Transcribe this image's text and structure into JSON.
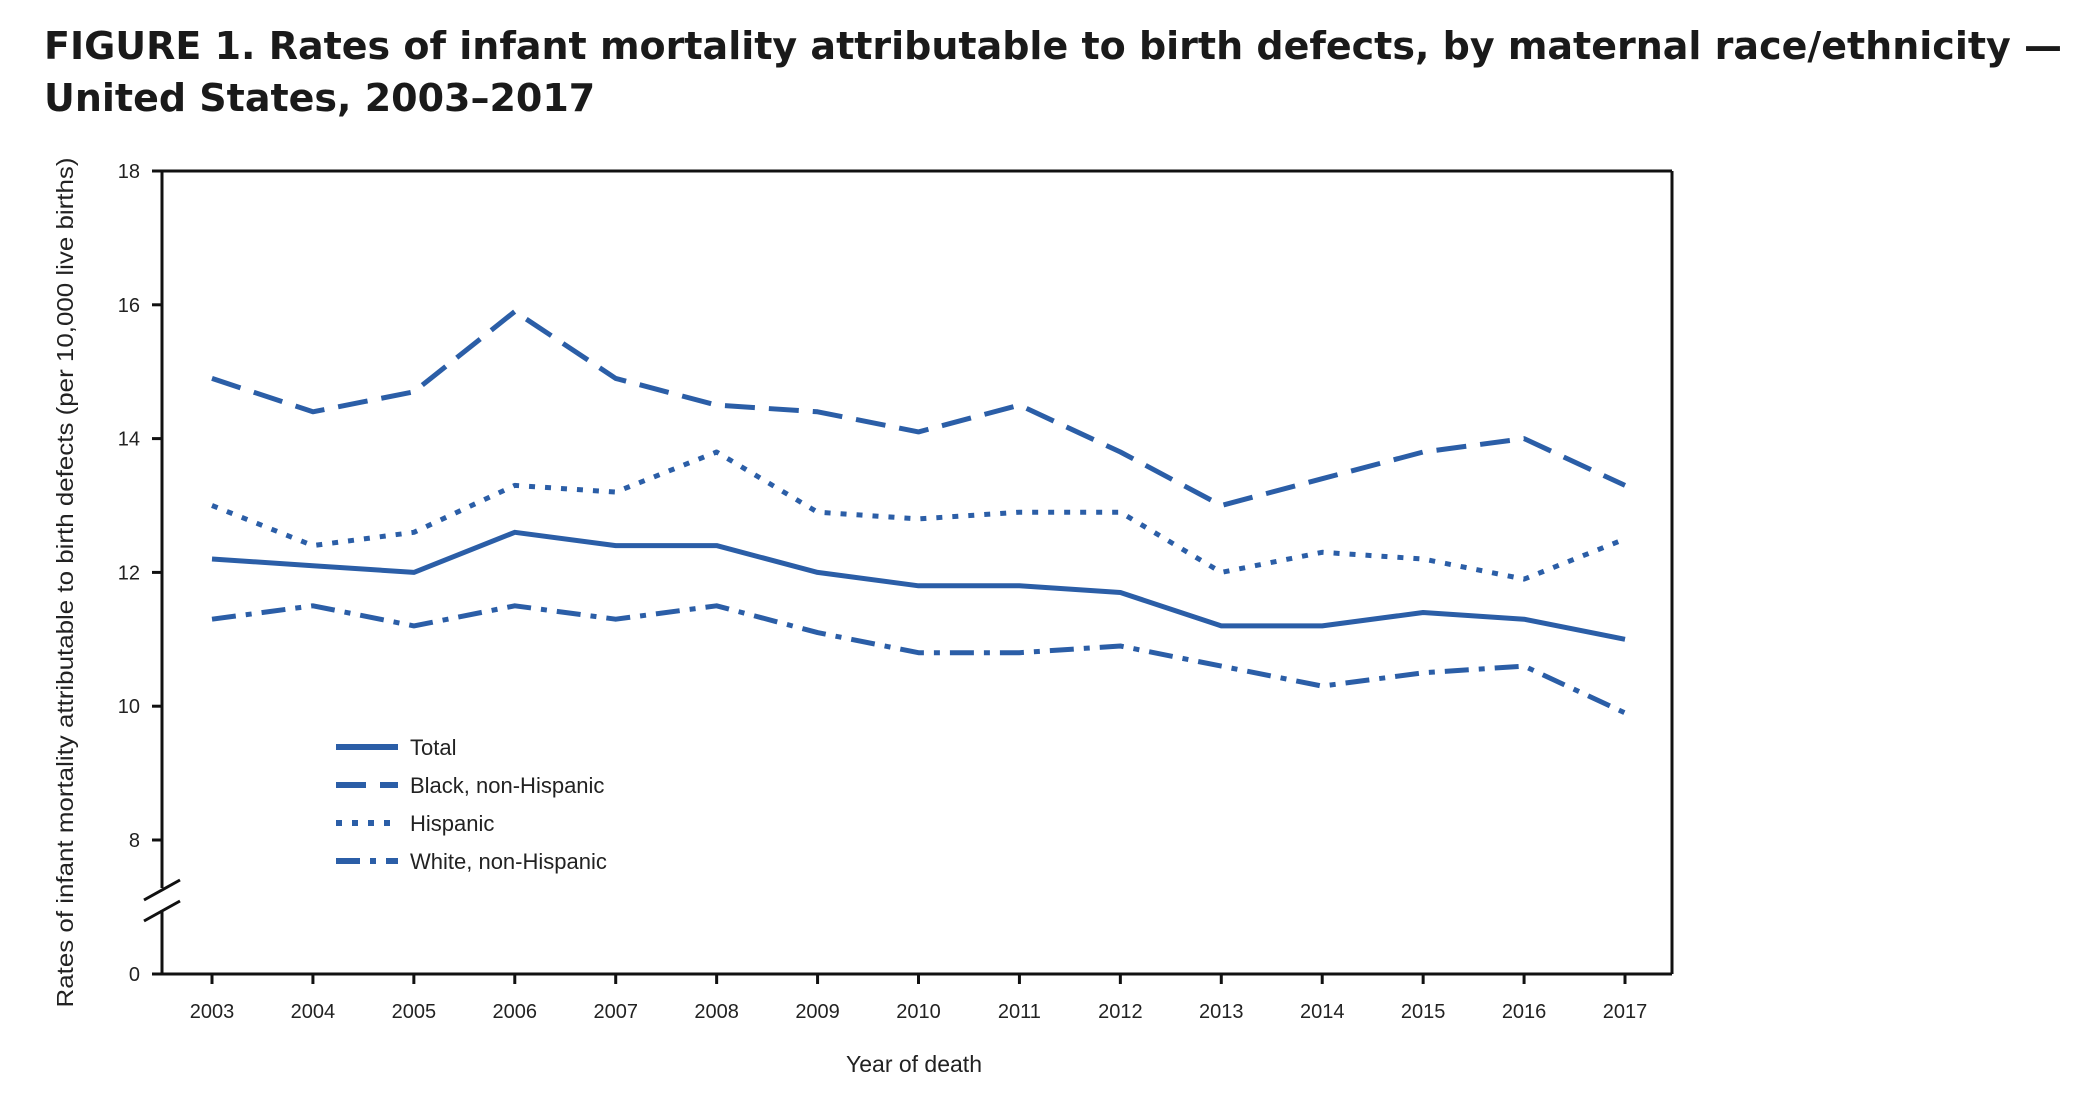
{
  "figure": {
    "title": "FIGURE 1. Rates of infant mortality attributable to birth defects, by maternal race/ethnicity — United States, 2003–2017"
  },
  "colors": {
    "series": "#2b5ea7",
    "axis": "#111111",
    "text": "#222222"
  },
  "chart_data": {
    "type": "line",
    "title": "FIGURE 1. Rates of infant mortality attributable to birth defects, by maternal race/ethnicity — United States, 2003–2017",
    "xlabel": "Year of death",
    "ylabel": "Rates of infant mortality attributable to birth defects (per 10,000 live births)",
    "x": [
      "2003",
      "2004",
      "2005",
      "2006",
      "2007",
      "2008",
      "2009",
      "2010",
      "2011",
      "2012",
      "2013",
      "2014",
      "2015",
      "2016",
      "2017"
    ],
    "yticks": [
      "0",
      "8",
      "10",
      "12",
      "14",
      "16",
      "18"
    ],
    "ylim": [
      0,
      18
    ],
    "axis_break": "between 0 and 8",
    "grid": false,
    "legend_position": "lower-left",
    "series": [
      {
        "name": "Total",
        "style": "solid",
        "values": [
          12.2,
          12.1,
          12.0,
          12.6,
          12.4,
          12.4,
          12.0,
          11.8,
          11.8,
          11.7,
          11.2,
          11.2,
          11.4,
          11.3,
          11.0
        ]
      },
      {
        "name": "Black, non-Hispanic",
        "style": "dashed",
        "values": [
          14.9,
          14.4,
          14.7,
          15.9,
          14.9,
          14.5,
          14.4,
          14.1,
          14.5,
          13.8,
          13.0,
          13.4,
          13.8,
          14.0,
          13.3
        ]
      },
      {
        "name": "Hispanic",
        "style": "dotted",
        "values": [
          13.0,
          12.4,
          12.6,
          13.3,
          13.2,
          13.8,
          12.9,
          12.8,
          12.9,
          12.9,
          12.0,
          12.3,
          12.2,
          11.9,
          12.5
        ]
      },
      {
        "name": "White, non-Hispanic",
        "style": "dash-dot",
        "values": [
          11.3,
          11.5,
          11.2,
          11.5,
          11.3,
          11.5,
          11.1,
          10.8,
          10.8,
          10.9,
          10.6,
          10.3,
          10.5,
          10.6,
          9.9
        ]
      }
    ]
  }
}
